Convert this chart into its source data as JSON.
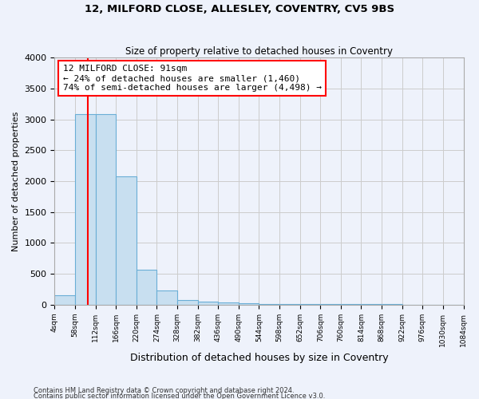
{
  "title1": "12, MILFORD CLOSE, ALLESLEY, COVENTRY, CV5 9BS",
  "title2": "Size of property relative to detached houses in Coventry",
  "xlabel": "Distribution of detached houses by size in Coventry",
  "ylabel": "Number of detached properties",
  "footer1": "Contains HM Land Registry data © Crown copyright and database right 2024.",
  "footer2": "Contains public sector information licensed under the Open Government Licence v3.0.",
  "bin_edges": [
    4,
    58,
    112,
    166,
    220,
    274,
    328,
    382,
    436,
    490,
    544,
    598,
    652,
    706,
    760,
    814,
    868,
    922,
    976,
    1030,
    1084
  ],
  "bar_heights": [
    150,
    3080,
    3080,
    2080,
    570,
    230,
    80,
    50,
    30,
    20,
    10,
    10,
    10,
    5,
    5,
    5,
    5,
    3,
    3,
    3
  ],
  "bar_color": "#c8dff0",
  "bar_edge_color": "#6aaed6",
  "vline_x": 91,
  "vline_color": "red",
  "annotation_text": "12 MILFORD CLOSE: 91sqm\n← 24% of detached houses are smaller (1,460)\n74% of semi-detached houses are larger (4,498) →",
  "annotation_box_color": "white",
  "annotation_box_edge": "red",
  "ylim": [
    0,
    4000
  ],
  "grid_color": "#cccccc",
  "bg_color": "#eef2fb"
}
